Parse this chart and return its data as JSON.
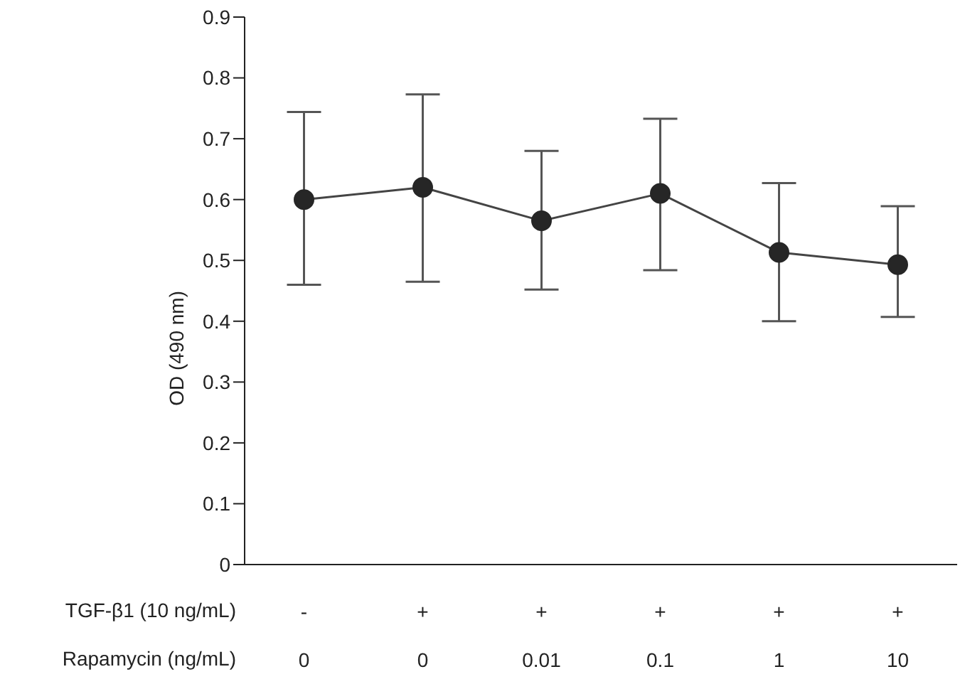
{
  "chart_data": {
    "type": "line",
    "ylabel": "OD (490 nm)",
    "categories": [
      "-\n0",
      "+\n0",
      "+\n0.01",
      "+\n0.1",
      "+\n1",
      "+\n10"
    ],
    "annotations": [
      "TGF-β1 (10 ng/mL)",
      "Rapamycin (ng/mL)"
    ],
    "series": [
      {
        "color": "#262626",
        "values": [
          0.6,
          0.62,
          0.565,
          0.61,
          0.513,
          0.493
        ],
        "errors": [
          [
            0.46,
            0.744
          ],
          [
            0.465,
            0.773
          ],
          [
            0.452,
            0.68
          ],
          [
            0.484,
            0.733
          ],
          [
            0.4,
            0.627
          ],
          [
            0.407,
            0.589
          ]
        ]
      }
    ],
    "ylim": [
      0,
      0.9
    ],
    "yticks": [
      0,
      0.1,
      0.2,
      0.3,
      0.4,
      0.5,
      0.6,
      0.7,
      0.8,
      0.9
    ],
    "grid": false,
    "legend": false,
    "marker": "circle",
    "line_style": "solid"
  }
}
